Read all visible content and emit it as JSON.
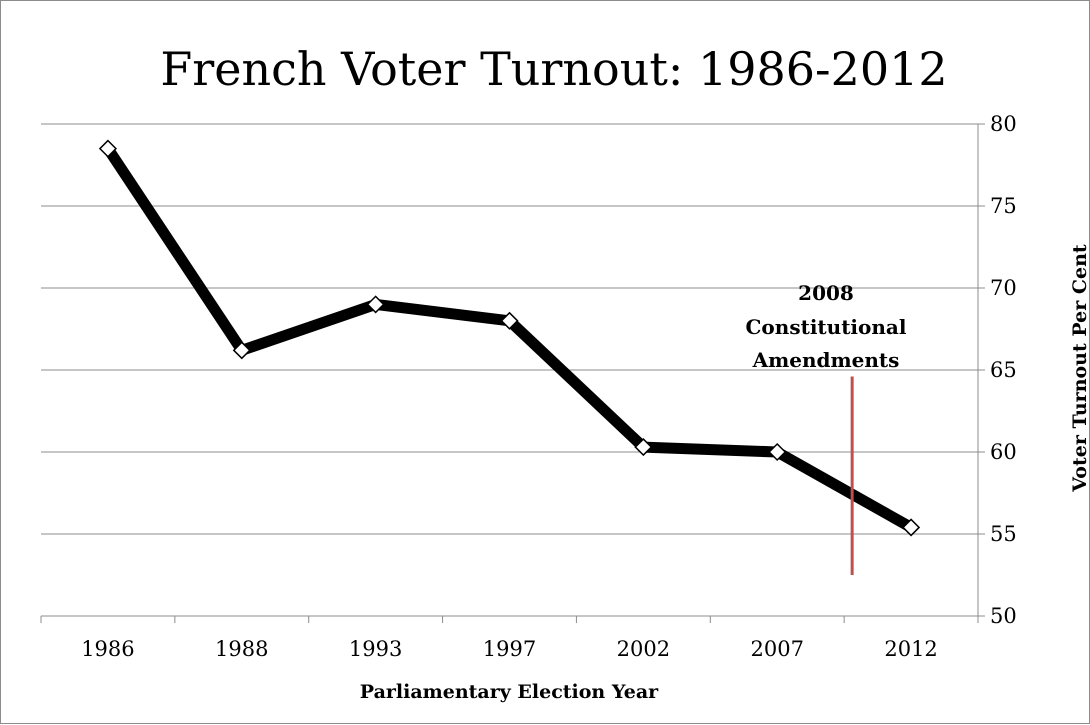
{
  "chart_data": {
    "type": "line",
    "title": "French Voter Turnout: 1986-2012",
    "xlabel": "Parliamentary Election Year",
    "ylabel": "Voter Turnout Per Cent",
    "categories": [
      "1986",
      "1988",
      "1993",
      "1997",
      "2002",
      "2007",
      "2012"
    ],
    "series": [
      {
        "values": [
          78.5,
          66.2,
          69.0,
          68.0,
          60.3,
          60.0,
          55.4
        ]
      }
    ],
    "ylim": [
      50,
      80
    ],
    "yticks": [
      "50",
      "55",
      "60",
      "65",
      "70",
      "75",
      "80"
    ],
    "y_axis_position": "right",
    "grid": "horizontal",
    "legend": "none",
    "line_color": "#000000",
    "marker": "white-diamond",
    "annotation": {
      "lines": [
        "2008",
        "Constitutional",
        "Amendments"
      ],
      "x_position_between": [
        "2007",
        "2012"
      ],
      "marker_color": "#c0504d",
      "marker_y_range": [
        52.5,
        64.6
      ]
    }
  }
}
